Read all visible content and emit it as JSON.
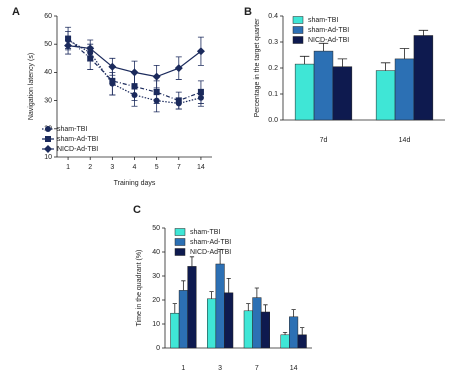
{
  "chart_data": [
    {
      "label": "A",
      "type": "line",
      "xlabel": "Training days",
      "ylabel": "Navigation latency (s)",
      "categories": [
        "1",
        "2",
        "3",
        "4",
        "5",
        "7",
        "14"
      ],
      "ylim": [
        10,
        60
      ],
      "yticks": [
        10,
        20,
        30,
        40,
        50,
        60
      ],
      "legend": "lower left",
      "series": [
        {
          "name": "sham-TBI",
          "color": "#1b2a5c",
          "marker": "circle",
          "line_style": "dotted",
          "values": [
            51.5,
            47,
            36,
            32,
            30,
            29,
            31
          ],
          "errors": [
            3,
            3,
            4,
            4,
            4,
            2,
            3
          ]
        },
        {
          "name": "sham-Ad-TBI",
          "color": "#1b2a5c",
          "marker": "square",
          "line_style": "dashed",
          "values": [
            52,
            45,
            37,
            35,
            33,
            30,
            33
          ],
          "errors": [
            4,
            4,
            5,
            5,
            4,
            3,
            4
          ]
        },
        {
          "name": "NICD-Ad-TBI",
          "color": "#1b2a5c",
          "marker": "diamond",
          "line_style": "solid",
          "values": [
            49.5,
            48.5,
            42,
            40,
            38.5,
            41.5,
            47.5
          ],
          "errors": [
            3,
            3,
            3,
            4,
            4,
            4,
            5
          ]
        }
      ]
    },
    {
      "label": "B",
      "type": "bar",
      "ylabel": "Percentage in the target quarter",
      "categories": [
        "7d",
        "14d"
      ],
      "ylim": [
        0,
        0.4
      ],
      "yticks": [
        {
          "value": 0,
          "label": "0.0"
        },
        0.1,
        0.2,
        0.3,
        0.4
      ],
      "legend": "upper left",
      "series": [
        {
          "name": "sham-TBI",
          "color": "#3fe6d6",
          "values": [
            0.215,
            0.19
          ],
          "errors": [
            0.03,
            0.03
          ]
        },
        {
          "name": "sham-Ad-TBI",
          "color": "#2c70b4",
          "values": [
            0.265,
            0.235
          ],
          "errors": [
            0.03,
            0.04
          ]
        },
        {
          "name": "NICD-Ad-TBI",
          "color": "#0e1a4f",
          "values": [
            0.205,
            0.325
          ],
          "errors": [
            0.03,
            0.02
          ]
        }
      ]
    },
    {
      "label": "C",
      "type": "bar",
      "ylabel": "Time in the quadrant (%)",
      "categories": [
        "1",
        "3",
        "7",
        "14"
      ],
      "ylim": [
        0,
        50
      ],
      "yticks": [
        0,
        10,
        20,
        30,
        40,
        50
      ],
      "legend": "upper left",
      "series": [
        {
          "name": "sham-TBI",
          "color": "#3fe6d6",
          "values": [
            14.5,
            20.5,
            15.5,
            5.5
          ],
          "errors": [
            4,
            3,
            3,
            1
          ]
        },
        {
          "name": "sham-Ad-TBI",
          "color": "#2c70b4",
          "values": [
            24,
            35,
            21,
            13
          ],
          "errors": [
            4,
            6,
            4,
            3
          ]
        },
        {
          "name": "NICD-Ad-TBI",
          "color": "#0e1a4f",
          "values": [
            34,
            23,
            15,
            5.5
          ],
          "errors": [
            4,
            6,
            3,
            3
          ]
        }
      ]
    }
  ]
}
